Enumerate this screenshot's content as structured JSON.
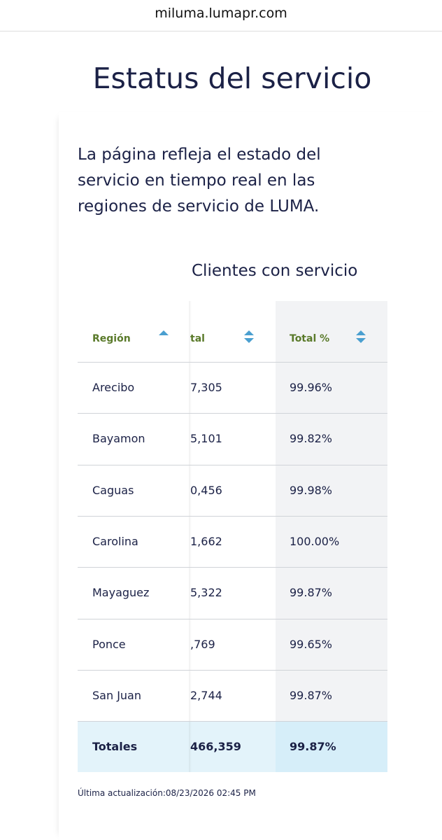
{
  "browser": {
    "url": "miluma.lumapr.com"
  },
  "page": {
    "title": "Estatus del servicio",
    "description": "La página refleja el estado del servicio en tiempo real en las regiones de servicio de LUMA.",
    "table": {
      "group_header": "Clientes con servicio",
      "headers": [
        "Región",
        "tal",
        "Total %"
      ],
      "rows": [
        [
          "Arecibo",
          "7,305",
          "99.96%"
        ],
        [
          "Bayamon",
          "5,101",
          "99.82%"
        ],
        [
          "Caguas",
          "0,456",
          "99.98%"
        ],
        [
          "Carolina",
          "1,662",
          "100.00%"
        ],
        [
          "Mayaguez",
          "5,322",
          "99.87%"
        ],
        [
          "Ponce",
          ",769",
          "99.65%"
        ],
        [
          "San Juan",
          "2,744",
          "99.87%"
        ]
      ],
      "totals": [
        "Totales",
        "466,359",
        "99.87%"
      ]
    },
    "footer": "Última actualización:08/23/2026 02:45 PM"
  }
}
